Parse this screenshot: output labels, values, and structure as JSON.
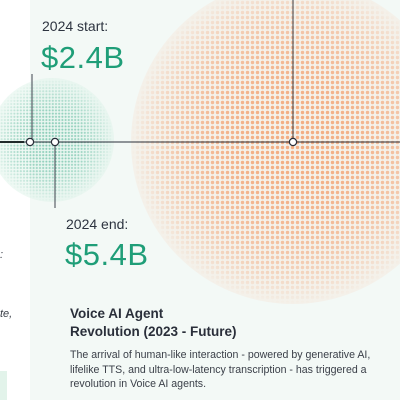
{
  "stats": {
    "start": {
      "label": "2024 start:",
      "value": "$2.4B"
    },
    "end": {
      "label": "2024 end:",
      "value": "$5.4B"
    }
  },
  "section": {
    "title_line1": "Voice AI Agent",
    "title_line2": "Revolution (2023 - Future)",
    "body": "The arrival of human-like interaction - powered by generative AI, lifelike TTS, and ultra-low-latency transcription - has triggered a revolution in Voice AI agents."
  },
  "fragments": {
    "left_colon": ":",
    "left_word": "te,"
  },
  "colors": {
    "green_accent": "#1f9e78",
    "orange_accent": "#f26b1d",
    "panel_background": "#f3f9f6"
  }
}
